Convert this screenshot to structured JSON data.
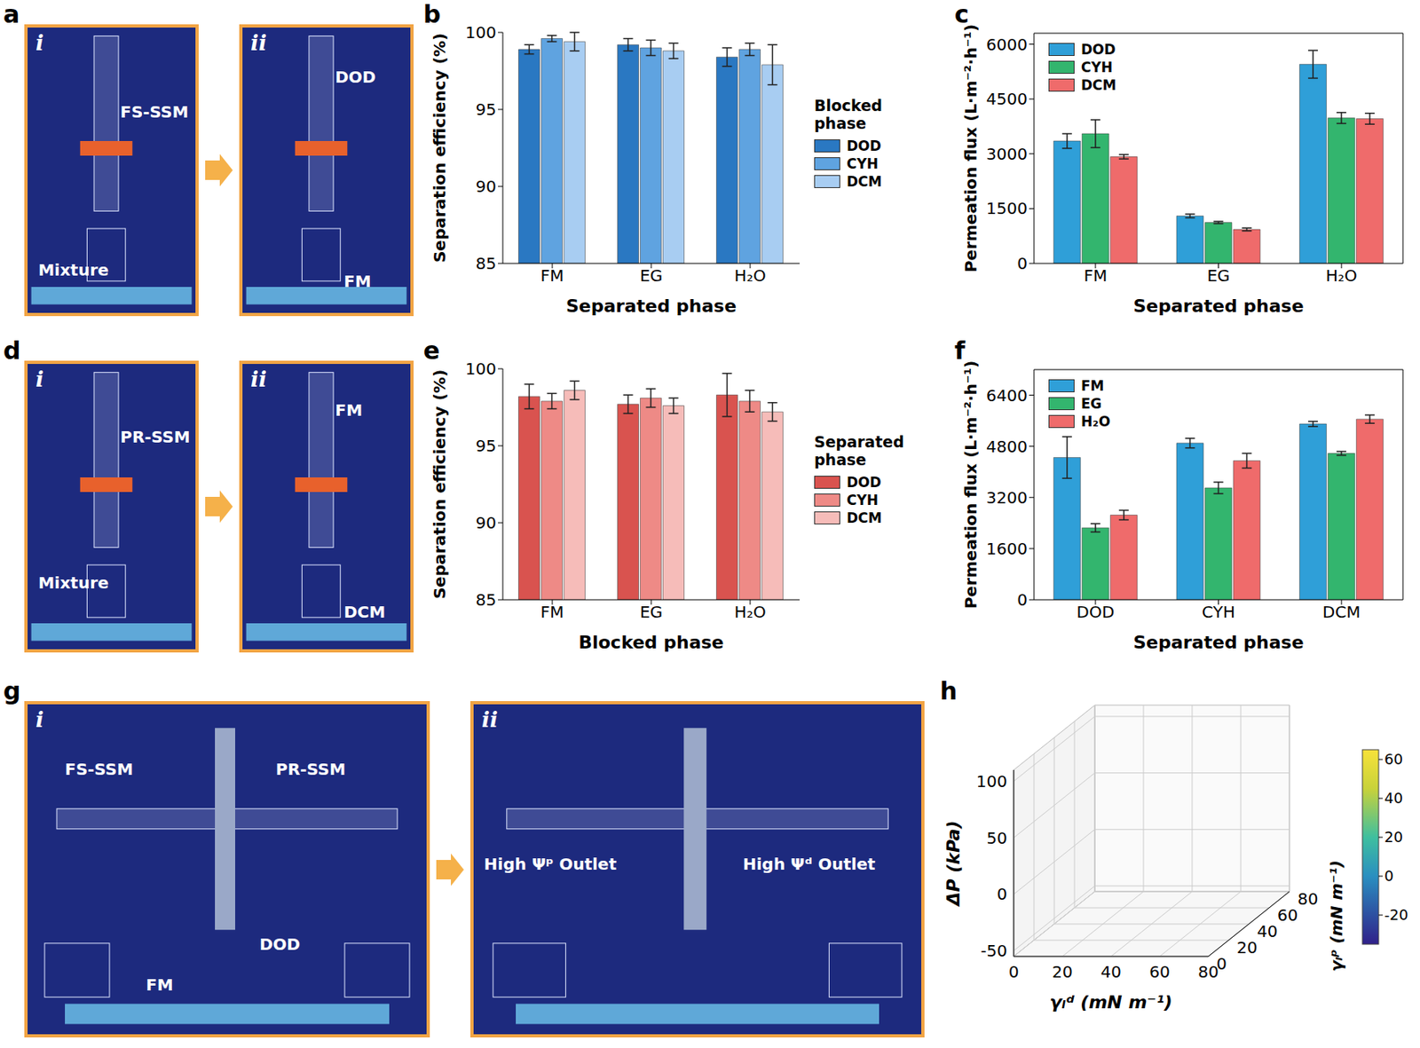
{
  "photos": [
    {
      "panel": "a",
      "frames": [
        {
          "numeral": "i",
          "labels": [
            "FS-SSM",
            "Mixture"
          ]
        },
        {
          "numeral": "ii",
          "labels": [
            "DOD",
            "FM"
          ]
        }
      ]
    },
    {
      "panel": "d",
      "frames": [
        {
          "numeral": "i",
          "labels": [
            "PR-SSM",
            "Mixture"
          ]
        },
        {
          "numeral": "ii",
          "labels": [
            "FM",
            "DCM"
          ]
        }
      ]
    },
    {
      "panel": "g",
      "frames": [
        {
          "numeral": "i",
          "labels": [
            "FS-SSM",
            "PR-SSM",
            "FM",
            "DOD"
          ]
        },
        {
          "numeral": "ii",
          "labels": [
            "High Ψᵖ Outlet",
            "High Ψᵈ Outlet"
          ]
        }
      ]
    }
  ],
  "chart_data": [
    {
      "panel": "b",
      "type": "bar",
      "ylabel": "Separation efficiency (%)",
      "xlabel": "Separated phase",
      "legend_title": "Blocked phase",
      "categories": [
        "FM",
        "EG",
        "H₂O"
      ],
      "series": [
        {
          "name": "DOD",
          "color": "#2a78c2",
          "values": [
            98.9,
            99.2,
            98.4
          ],
          "errors": [
            0.3,
            0.4,
            0.6
          ]
        },
        {
          "name": "CYH",
          "color": "#5fa3e0",
          "values": [
            99.6,
            99.0,
            98.9
          ],
          "errors": [
            0.2,
            0.5,
            0.4
          ]
        },
        {
          "name": "DCM",
          "color": "#a8cdf2",
          "values": [
            99.4,
            98.8,
            97.9
          ],
          "errors": [
            0.6,
            0.5,
            1.3
          ]
        }
      ],
      "ylim": [
        85,
        100
      ],
      "yticks": [
        85,
        90,
        95,
        100
      ],
      "legend": "right"
    },
    {
      "panel": "c",
      "type": "bar",
      "ylabel": "Permeation flux (L·m⁻²·h⁻¹)",
      "xlabel": "Separated phase",
      "categories": [
        "FM",
        "EG",
        "H₂O"
      ],
      "series": [
        {
          "name": "DOD",
          "color": "#2f9fd8",
          "values": [
            3350,
            1300,
            5450
          ],
          "errors": [
            200,
            50,
            380
          ]
        },
        {
          "name": "CYH",
          "color": "#33b56e",
          "values": [
            3550,
            1120,
            3980
          ],
          "errors": [
            380,
            30,
            150
          ]
        },
        {
          "name": "DCM",
          "color": "#ef6b6b",
          "values": [
            2920,
            930,
            3960
          ],
          "errors": [
            60,
            40,
            150
          ]
        }
      ],
      "ylim": [
        0,
        6300
      ],
      "yticks": [
        0,
        1500,
        3000,
        4500,
        6000
      ],
      "legend": "upper left"
    },
    {
      "panel": "e",
      "type": "bar",
      "ylabel": "Separation efficiency (%)",
      "xlabel": "Blocked phase",
      "legend_title": "Separated phase",
      "categories": [
        "FM",
        "EG",
        "H₂O"
      ],
      "series": [
        {
          "name": "DOD",
          "color": "#d9534f",
          "values": [
            98.2,
            97.7,
            98.3
          ],
          "errors": [
            0.8,
            0.6,
            1.4
          ]
        },
        {
          "name": "CYH",
          "color": "#ee8a86",
          "values": [
            97.9,
            98.1,
            97.9
          ],
          "errors": [
            0.5,
            0.6,
            0.7
          ]
        },
        {
          "name": "DCM",
          "color": "#f6bcb9",
          "values": [
            98.6,
            97.6,
            97.2
          ],
          "errors": [
            0.6,
            0.5,
            0.6
          ]
        }
      ],
      "ylim": [
        85,
        100
      ],
      "yticks": [
        85,
        90,
        95,
        100
      ],
      "legend": "right"
    },
    {
      "panel": "f",
      "type": "bar",
      "ylabel": "Permeation flux (L·m⁻²·h⁻¹)",
      "xlabel": "Separated phase",
      "categories": [
        "DOD",
        "CYH",
        "DCM"
      ],
      "series": [
        {
          "name": "FM",
          "color": "#2f9fd8",
          "values": [
            4450,
            4900,
            5500
          ],
          "errors": [
            650,
            150,
            80
          ]
        },
        {
          "name": "EG",
          "color": "#33b56e",
          "values": [
            2250,
            3500,
            4580
          ],
          "errors": [
            130,
            180,
            60
          ]
        },
        {
          "name": "H₂O",
          "color": "#ef6b6b",
          "values": [
            2650,
            4350,
            5650
          ],
          "errors": [
            150,
            230,
            130
          ]
        }
      ],
      "ylim": [
        0,
        7200
      ],
      "yticks": [
        0,
        1600,
        3200,
        4800,
        6400
      ],
      "legend": "upper left"
    },
    {
      "panel": "h",
      "type": "surface",
      "xlabel": "γₗᵈ (mN m⁻¹)",
      "ylabel": "γₗᵖ (mN m⁻¹)",
      "zlabel": "ΔP (kPa)",
      "xlim": [
        0,
        80
      ],
      "xticks": [
        0,
        20,
        40,
        60,
        80
      ],
      "ylim": [
        0,
        80
      ],
      "yticks": [
        0,
        20,
        40,
        60,
        80
      ],
      "zlim": [
        -55,
        110
      ],
      "zticks": [
        -50,
        0,
        50,
        100
      ],
      "colorbar": {
        "range": [
          -35,
          65
        ],
        "ticks": [
          -20,
          0,
          20,
          40,
          60
        ]
      }
    }
  ]
}
